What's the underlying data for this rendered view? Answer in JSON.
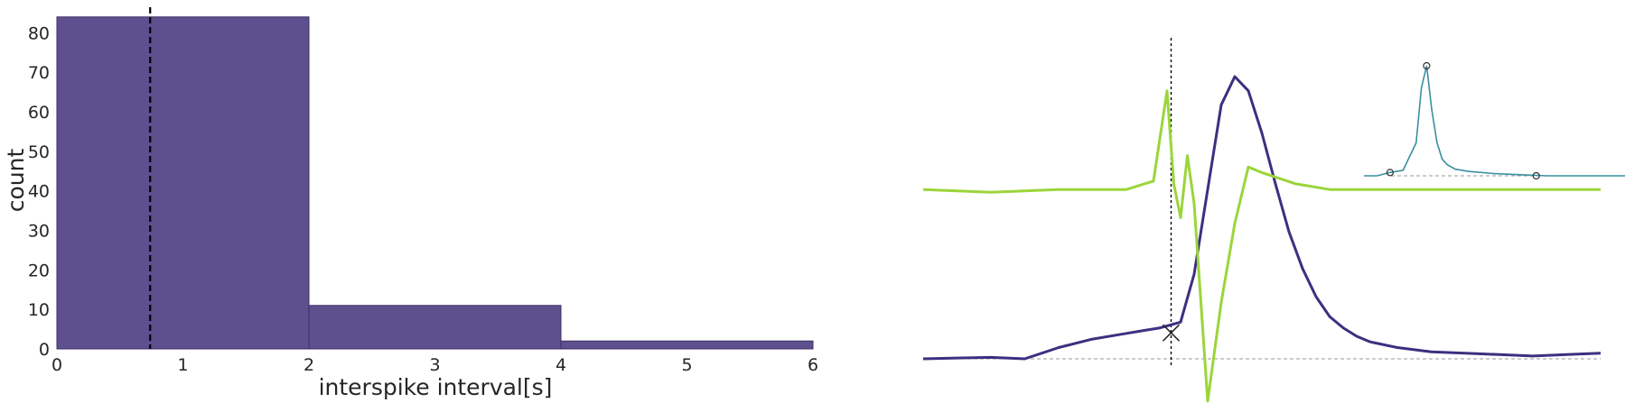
{
  "chart_data": [
    {
      "type": "bar",
      "panel": "histogram",
      "xlabel": "interspike interval[s]",
      "ylabel": "count",
      "bins": [
        {
          "x0": 0,
          "x1": 2,
          "count": 84
        },
        {
          "x0": 2,
          "x1": 4,
          "count": 11
        },
        {
          "x0": 4,
          "x1": 6,
          "count": 2
        }
      ],
      "marker_line_x": 0.74,
      "xlim": [
        0,
        6
      ],
      "ylim": [
        0,
        86
      ],
      "xticks": [
        0,
        1,
        2,
        3,
        4,
        5,
        6
      ],
      "yticks": [
        0,
        10,
        20,
        30,
        40,
        50,
        60,
        70,
        80
      ],
      "grid": false,
      "colors": {
        "bar": "#5e4f8e",
        "bar_edge": "#3c3267",
        "marker_line": "#000000"
      }
    },
    {
      "type": "line",
      "panel": "spike-waveform",
      "axes": "hidden",
      "series": [
        {
          "role": "waveform",
          "color": "#3f2e80",
          "x": [
            0,
            0.05,
            0.1,
            0.15,
            0.2,
            0.25,
            0.3,
            0.35,
            0.38,
            0.4,
            0.42,
            0.44,
            0.46,
            0.48,
            0.5,
            0.52,
            0.54,
            0.56,
            0.58,
            0.6,
            0.62,
            0.64,
            0.66,
            0.68,
            0.7,
            0.75,
            0.8,
            0.85,
            0.9,
            0.95,
            1.0
          ],
          "y": [
            0,
            0.003,
            0.005,
            0.0,
            0.04,
            0.07,
            0.09,
            0.11,
            0.13,
            0.3,
            0.6,
            0.9,
            1.0,
            0.95,
            0.8,
            0.62,
            0.45,
            0.32,
            0.22,
            0.15,
            0.11,
            0.08,
            0.06,
            0.05,
            0.04,
            0.025,
            0.02,
            0.015,
            0.01,
            0.015,
            0.02
          ]
        },
        {
          "role": "derivative",
          "color": "#9bd53a",
          "x": [
            0,
            0.1,
            0.2,
            0.3,
            0.34,
            0.36,
            0.37,
            0.38,
            0.39,
            0.4,
            0.41,
            0.42,
            0.44,
            0.46,
            0.48,
            0.5,
            0.55,
            0.6,
            0.7,
            0.8,
            0.9,
            1.0
          ],
          "y": [
            0.6,
            0.59,
            0.6,
            0.6,
            0.63,
            0.95,
            0.62,
            0.5,
            0.72,
            0.55,
            0.2,
            -0.15,
            0.2,
            0.48,
            0.68,
            0.66,
            0.62,
            0.6,
            0.6,
            0.6,
            0.6,
            0.6
          ]
        }
      ],
      "threshold_x": 0.366,
      "threshold_marker": "x",
      "baseline": "dashed"
    },
    {
      "type": "line",
      "panel": "inset-waveform",
      "axes": "hidden",
      "series": [
        {
          "role": "waveform",
          "color": "#3a8fa0",
          "x": [
            0,
            0.05,
            0.1,
            0.15,
            0.2,
            0.22,
            0.24,
            0.26,
            0.28,
            0.3,
            0.32,
            0.35,
            0.4,
            0.5,
            0.6,
            0.7,
            0.8,
            0.9,
            1.0
          ],
          "y": [
            0,
            0.0,
            0.03,
            0.05,
            0.3,
            0.8,
            1.0,
            0.6,
            0.3,
            0.15,
            0.1,
            0.06,
            0.04,
            0.02,
            0.01,
            0.0,
            0.0,
            0.0,
            0.0
          ]
        }
      ],
      "markers": [
        "start",
        "peak",
        "end"
      ],
      "baseline": "dashed"
    }
  ]
}
